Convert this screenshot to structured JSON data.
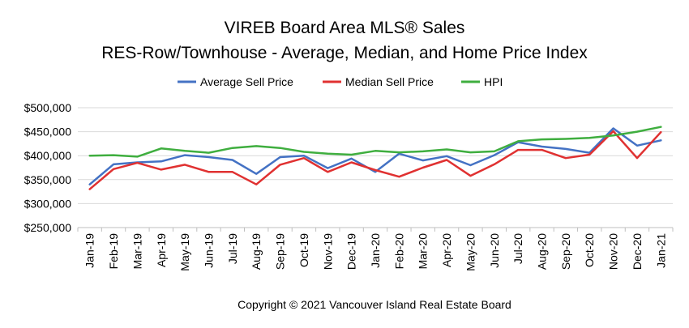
{
  "chart_data": {
    "type": "line",
    "title_lines": [
      "VIREB Board Area MLS® Sales",
      "RES-Row/Townhouse - Average, Median, and Home Price Index"
    ],
    "categories": [
      "Jan-19",
      "Feb-19",
      "Mar-19",
      "Apr-19",
      "May-19",
      "Jun-19",
      "Jul-19",
      "Aug-19",
      "Sep-19",
      "Oct-19",
      "Nov-19",
      "Dec-19",
      "Jan-20",
      "Feb-20",
      "Mar-20",
      "Apr-20",
      "May-20",
      "Jun-20",
      "Jul-20",
      "Aug-20",
      "Sep-20",
      "Oct-20",
      "Nov-20",
      "Dec-20",
      "Jan-21"
    ],
    "series": [
      {
        "name": "Average Sell Price",
        "color": "#4472c4",
        "values": [
          340000,
          382000,
          386000,
          388000,
          401000,
          397000,
          391000,
          362000,
          397000,
          400000,
          374000,
          394000,
          366000,
          404000,
          390000,
          399000,
          380000,
          401000,
          428000,
          419000,
          414000,
          406000,
          457000,
          421000,
          432000
        ]
      },
      {
        "name": "Median Sell Price",
        "color": "#e03131",
        "values": [
          330000,
          372000,
          385000,
          371000,
          381000,
          366000,
          366000,
          340000,
          381000,
          395000,
          366000,
          386000,
          370000,
          356000,
          375000,
          391000,
          358000,
          382000,
          412000,
          412000,
          395000,
          402000,
          451000,
          395000,
          449000
        ]
      },
      {
        "name": "HPI",
        "color": "#3fae3f",
        "values": [
          400000,
          401000,
          398000,
          415000,
          410000,
          406000,
          416000,
          420000,
          416000,
          408000,
          404000,
          402000,
          410000,
          407000,
          409000,
          413000,
          407000,
          409000,
          430000,
          434000,
          435000,
          437000,
          442000,
          450000,
          460000
        ]
      }
    ],
    "ylim": [
      250000,
      500000
    ],
    "yticks": [
      250000,
      300000,
      350000,
      400000,
      450000,
      500000
    ],
    "ytick_labels": [
      "$250,000",
      "$300,000",
      "$350,000",
      "$400,000",
      "$450,000",
      "$500,000"
    ],
    "grid": true,
    "legend_position": "top-center"
  },
  "footer": {
    "copyright": "Copyright © 2021 Vancouver Island Real Estate Board"
  }
}
